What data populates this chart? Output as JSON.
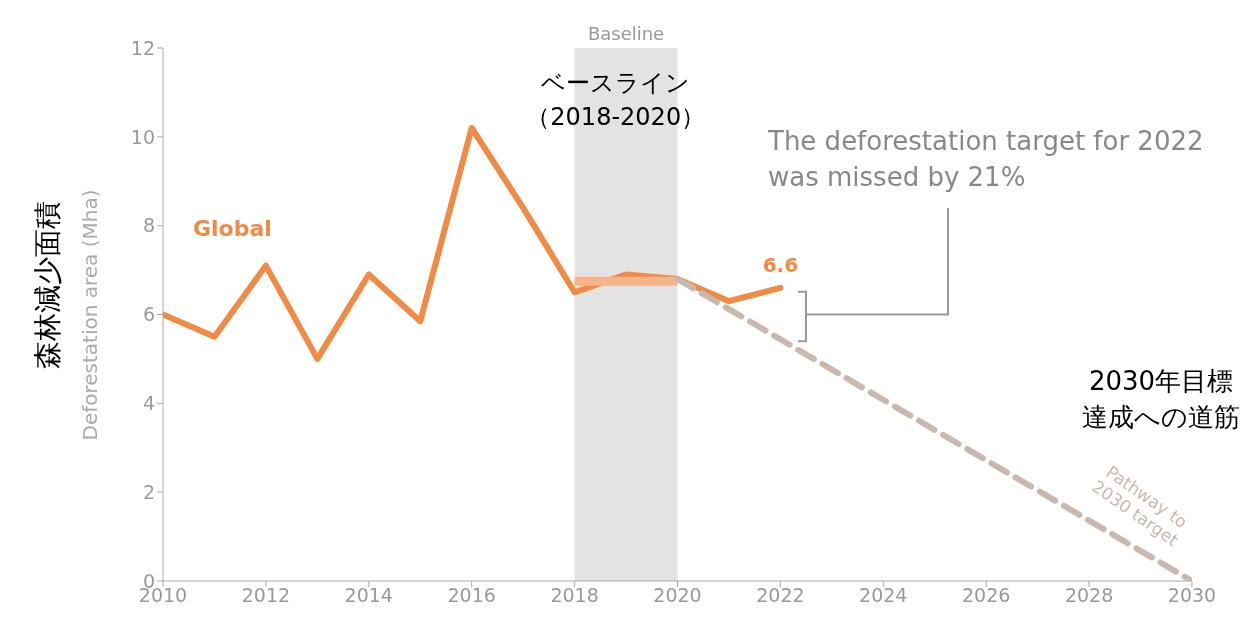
{
  "chart_data": {
    "type": "line",
    "ylabel": "Deforestation area (Mha)",
    "xlim": [
      2010,
      2030
    ],
    "xticks": [
      2010,
      2012,
      2014,
      2016,
      2018,
      2020,
      2022,
      2024,
      2026,
      2028,
      2030
    ],
    "ylim": [
      0,
      12
    ],
    "yticks": [
      0,
      2,
      4,
      6,
      8,
      10,
      12
    ],
    "marker": "none",
    "series": [
      {
        "name": "Global",
        "color": "#f08a45",
        "line_style": "solid",
        "x": [
          2010,
          2011,
          2012,
          2013,
          2014,
          2015,
          2016,
          2017,
          2018,
          2019,
          2020,
          2021,
          2022
        ],
        "values": [
          6.0,
          5.5,
          7.1,
          5.0,
          6.9,
          5.85,
          10.2,
          8.4,
          6.5,
          6.9,
          6.8,
          6.3,
          6.6
        ],
        "value_labels": [
          null,
          null,
          null,
          null,
          null,
          null,
          null,
          null,
          null,
          null,
          null,
          null,
          "6.6"
        ]
      },
      {
        "color": "#f6b48a",
        "line_style": "solid",
        "x": [
          2018,
          2020
        ],
        "values": [
          6.75,
          6.75
        ]
      },
      {
        "name": "Pathway to 2030 target",
        "color": "#c9b8ad",
        "line_style": "dashed",
        "x": [
          2020,
          2030
        ],
        "values": [
          6.8,
          0
        ]
      }
    ],
    "bands": [
      {
        "axis": "x",
        "from": 2018,
        "to": 2020,
        "label": "Baseline",
        "color": "#e3e3e3"
      }
    ],
    "annotations": [
      "森林減少面積",
      "ベースライン（2018-2020）",
      "The deforestation target for 2022 was missed by 21%",
      "2030年目標達成への道筋"
    ]
  }
}
